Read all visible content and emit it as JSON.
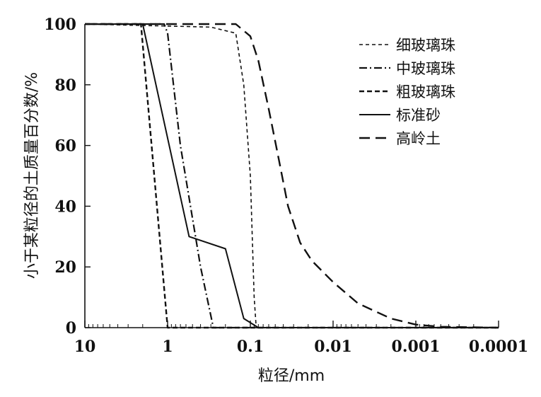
{
  "chart_data": {
    "type": "line",
    "xlabel": "粒径/mm",
    "ylabel": "小于某粒径的土质量百分数/%",
    "x_scale": "log",
    "x_reversed": true,
    "xlim": [
      10,
      0.0001
    ],
    "ylim": [
      0,
      100
    ],
    "x_ticks": [
      {
        "value": 10,
        "label": "10"
      },
      {
        "value": 1,
        "label": "1"
      },
      {
        "value": 0.1,
        "label": "0.1"
      },
      {
        "value": 0.01,
        "label": "0.01"
      },
      {
        "value": 0.001,
        "label": "0.001"
      },
      {
        "value": 0.0001,
        "label": "0.0001"
      }
    ],
    "y_ticks": [
      0,
      20,
      40,
      60,
      80,
      100
    ],
    "legend_position": "top-right",
    "grid": false,
    "series": [
      {
        "name": "细玻璃珠",
        "dash": "fine-dash",
        "x": [
          10,
          0.3,
          0.15,
          0.12,
          0.1,
          0.09,
          0.085,
          0.0001
        ],
        "y": [
          100,
          99,
          97,
          80,
          50,
          10,
          0,
          0
        ]
      },
      {
        "name": "中玻璃珠",
        "dash": "dash-dot",
        "x": [
          10,
          1.1,
          1.0,
          0.7,
          0.4,
          0.28,
          0.0001
        ],
        "y": [
          100,
          100,
          97,
          60,
          20,
          0,
          0
        ]
      },
      {
        "name": "粗玻璃珠",
        "dash": "medium-dash",
        "x": [
          10,
          2.1,
          1.0,
          0.0001
        ],
        "y": [
          100,
          100,
          0,
          0
        ]
      },
      {
        "name": "标准砂",
        "dash": "solid",
        "x": [
          10,
          2,
          0.55,
          0.2,
          0.12,
          0.08,
          0.0001
        ],
        "y": [
          100,
          100,
          30,
          26,
          3,
          0,
          0
        ]
      },
      {
        "name": "高岭土",
        "dash": "long-dash",
        "x": [
          10,
          0.15,
          0.1,
          0.08,
          0.06,
          0.045,
          0.035,
          0.025,
          0.018,
          0.01,
          0.005,
          0.002,
          0.001,
          0.0005,
          0.0001
        ],
        "y": [
          100,
          100,
          96,
          88,
          72,
          55,
          40,
          28,
          22,
          15,
          8,
          3,
          1,
          0.3,
          0
        ]
      }
    ]
  }
}
